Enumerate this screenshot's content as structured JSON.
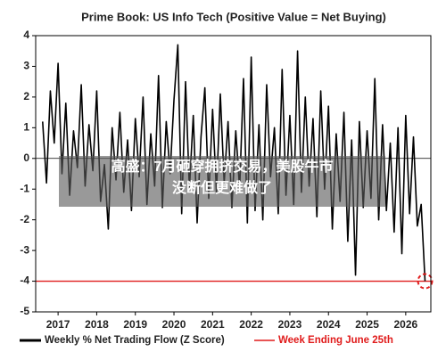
{
  "chart_data": {
    "type": "line",
    "title": "Prime Book: US Info Tech (Positive Value = Net Buying)",
    "x": [
      2016.6,
      2016.7,
      2016.8,
      2016.9,
      2017.0,
      2017.1,
      2017.2,
      2017.3,
      2017.4,
      2017.5,
      2017.6,
      2017.7,
      2017.8,
      2017.9,
      2018.0,
      2018.1,
      2018.2,
      2018.3,
      2018.4,
      2018.5,
      2018.6,
      2018.7,
      2018.8,
      2018.9,
      2019.0,
      2019.1,
      2019.2,
      2019.3,
      2019.4,
      2019.5,
      2019.6,
      2019.7,
      2019.8,
      2019.9,
      2020.0,
      2020.1,
      2020.2,
      2020.3,
      2020.4,
      2020.5,
      2020.6,
      2020.7,
      2020.8,
      2020.9,
      2021.0,
      2021.1,
      2021.2,
      2021.3,
      2021.4,
      2021.5,
      2021.6,
      2021.7,
      2021.8,
      2021.9,
      2022.0,
      2022.1,
      2022.2,
      2022.3,
      2022.4,
      2022.5,
      2022.6,
      2022.7,
      2022.8,
      2022.9,
      2023.0,
      2023.1,
      2023.2,
      2023.3,
      2023.4,
      2023.5,
      2023.6,
      2023.7,
      2023.8,
      2023.9,
      2024.0,
      2024.1,
      2024.2,
      2024.3,
      2024.4,
      2024.5,
      2024.6,
      2024.7,
      2024.8,
      2024.9,
      2025.0,
      2025.1,
      2025.2,
      2025.3,
      2025.4,
      2025.5,
      2025.6,
      2025.7,
      2025.8,
      2025.9,
      2026.0,
      2026.1,
      2026.2,
      2026.3,
      2026.4,
      2026.5
    ],
    "series": [
      {
        "name": "Weekly % Net Trading Flow (Z Score)",
        "color": "#000000",
        "values": [
          1.2,
          -0.8,
          2.2,
          0.5,
          3.1,
          -0.5,
          1.8,
          -1.2,
          0.9,
          -0.3,
          2.4,
          -0.9,
          1.1,
          -0.4,
          2.2,
          -1.4,
          -0.2,
          -2.3,
          1.0,
          -0.7,
          1.5,
          -1.1,
          0.6,
          -1.7,
          1.3,
          -0.6,
          2.0,
          -1.5,
          0.8,
          -0.9,
          2.7,
          -1.6,
          1.2,
          -0.5,
          1.9,
          3.7,
          -1.8,
          2.5,
          -1.0,
          1.4,
          -2.1,
          0.7,
          2.3,
          -1.3,
          1.6,
          -1.1,
          2.1,
          -0.8,
          1.2,
          -1.6,
          0.9,
          -1.0,
          2.6,
          -2.1,
          3.3,
          -1.7,
          1.1,
          -2.0,
          2.4,
          -0.6,
          1.0,
          -1.8,
          2.9,
          -1.2,
          1.4,
          -1.5,
          3.5,
          -1.1,
          2.0,
          -0.9,
          1.3,
          -1.9,
          2.2,
          -1.0,
          1.7,
          -2.3,
          0.8,
          -1.4,
          1.5,
          -2.7,
          0.6,
          -3.8,
          1.2,
          -1.6,
          0.9,
          -1.3,
          2.6,
          -2.0,
          1.1,
          -1.7,
          0.5,
          -2.4,
          1.0,
          -3.1,
          1.4,
          -1.8,
          0.7,
          -2.2,
          -1.5,
          -4.0
        ]
      }
    ],
    "reference_line": {
      "name": "Week Ending June 25th",
      "value": -4,
      "color": "#e01b1b"
    },
    "xlim": [
      2016.42,
      2026.65
    ],
    "xticks": [
      2017,
      2018,
      2019,
      2020,
      2021,
      2022,
      2023,
      2024,
      2025,
      2026
    ],
    "ylim": [
      -5,
      4
    ],
    "yticks": [
      -5,
      -4,
      -3,
      -2,
      -1,
      0,
      1,
      2,
      3,
      4
    ],
    "grid": false
  },
  "overlay": {
    "lines": [
      "高盛：7月砸穿拥挤交易，美股牛市",
      "没断但更难做了"
    ]
  }
}
